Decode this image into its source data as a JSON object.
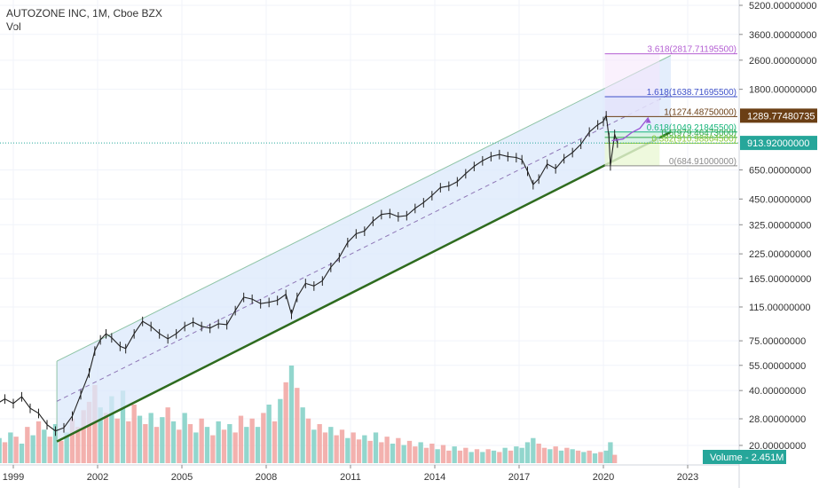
{
  "header": {
    "symbol_title": "AUTOZONE INC, 1M, Cboe BZX",
    "sub_label": "Vol"
  },
  "colors": {
    "channel_fill": "#dbe8fb",
    "channel_edge": "#8fc4a6",
    "lower_trend": "#2e6b1e",
    "median": "#7a5aa6",
    "candle": "#222222",
    "vol_up": "#7fcfc4",
    "vol_down": "#f1a3a0",
    "current_price": "#26a69a",
    "prior_high": "#6b3f15",
    "volume_badge": "#26a69a",
    "forecast_arrow": "#9b57d6"
  },
  "chart_data": {
    "type": "line",
    "y_scale": "log",
    "price_axis_labels": [
      "5200.00000000",
      "3600.00000000",
      "2600.00000000",
      "1800.00000000",
      "1289.77480735",
      "913.92000000",
      "650.00000000",
      "450.00000000",
      "325.00000000",
      "225.00000000",
      "165.00000000",
      "115.00000000",
      "75.00000000",
      "55.00000000",
      "40.00000000",
      "28.00000000",
      "20.00000000"
    ],
    "price_ticks": [
      5200,
      3600,
      2600,
      1800,
      650,
      450,
      325,
      225,
      165,
      115,
      75,
      55,
      40,
      28,
      20
    ],
    "time_axis_labels": [
      "1999",
      "2002",
      "2005",
      "2008",
      "2011",
      "2014",
      "2017",
      "2020",
      "2023"
    ],
    "time_ticks": [
      1999,
      2002,
      2005,
      2008,
      2011,
      2014,
      2017,
      2020,
      2023
    ],
    "price_path": [
      [
        1998.3,
        33
      ],
      [
        1998.7,
        36
      ],
      [
        1999.0,
        34
      ],
      [
        1999.3,
        37
      ],
      [
        1999.6,
        32
      ],
      [
        1999.9,
        30
      ],
      [
        2000.2,
        26
      ],
      [
        2000.5,
        24
      ],
      [
        2000.8,
        25
      ],
      [
        2001.1,
        29
      ],
      [
        2001.4,
        38
      ],
      [
        2001.7,
        50
      ],
      [
        2001.9,
        66
      ],
      [
        2002.1,
        76
      ],
      [
        2002.3,
        82
      ],
      [
        2002.5,
        78
      ],
      [
        2002.8,
        70
      ],
      [
        2003.0,
        68
      ],
      [
        2003.3,
        82
      ],
      [
        2003.6,
        96
      ],
      [
        2003.9,
        90
      ],
      [
        2004.2,
        82
      ],
      [
        2004.5,
        77
      ],
      [
        2004.8,
        82
      ],
      [
        2005.1,
        90
      ],
      [
        2005.4,
        95
      ],
      [
        2005.7,
        90
      ],
      [
        2006.0,
        88
      ],
      [
        2006.3,
        93
      ],
      [
        2006.6,
        92
      ],
      [
        2006.9,
        110
      ],
      [
        2007.2,
        130
      ],
      [
        2007.5,
        127
      ],
      [
        2007.8,
        120
      ],
      [
        2008.1,
        122
      ],
      [
        2008.4,
        125
      ],
      [
        2008.7,
        135
      ],
      [
        2008.9,
        105
      ],
      [
        2009.1,
        130
      ],
      [
        2009.4,
        155
      ],
      [
        2009.7,
        150
      ],
      [
        2010.0,
        160
      ],
      [
        2010.3,
        190
      ],
      [
        2010.6,
        215
      ],
      [
        2010.9,
        260
      ],
      [
        2011.2,
        290
      ],
      [
        2011.5,
        300
      ],
      [
        2011.8,
        340
      ],
      [
        2012.1,
        370
      ],
      [
        2012.4,
        375
      ],
      [
        2012.7,
        360
      ],
      [
        2013.0,
        365
      ],
      [
        2013.3,
        400
      ],
      [
        2013.6,
        430
      ],
      [
        2013.9,
        470
      ],
      [
        2014.2,
        520
      ],
      [
        2014.5,
        530
      ],
      [
        2014.8,
        560
      ],
      [
        2015.1,
        620
      ],
      [
        2015.4,
        680
      ],
      [
        2015.7,
        730
      ],
      [
        2016.0,
        770
      ],
      [
        2016.3,
        790
      ],
      [
        2016.6,
        770
      ],
      [
        2016.9,
        760
      ],
      [
        2017.1,
        740
      ],
      [
        2017.3,
        640
      ],
      [
        2017.5,
        540
      ],
      [
        2017.7,
        580
      ],
      [
        2018.0,
        700
      ],
      [
        2018.3,
        660
      ],
      [
        2018.6,
        750
      ],
      [
        2018.9,
        810
      ],
      [
        2019.2,
        900
      ],
      [
        2019.5,
        1050
      ],
      [
        2019.8,
        1150
      ],
      [
        2020.0,
        1200
      ],
      [
        2020.1,
        1290
      ],
      [
        2020.2,
        980
      ],
      [
        2020.25,
        685
      ],
      [
        2020.4,
        1020
      ],
      [
        2020.5,
        914
      ]
    ],
    "channel": {
      "lower": [
        [
          2000.55,
          21
        ],
        [
          2022.4,
          1050
        ]
      ],
      "upper": [
        [
          2000.55,
          58
        ],
        [
          2022.4,
          2760
        ]
      ]
    },
    "fib_levels": [
      {
        "label": "3.618(2817.71195500)",
        "value": 2817.71,
        "color": "#b45fd3"
      },
      {
        "label": "1.618(1638.71695500)",
        "value": 1638.72,
        "color": "#3e50c9"
      },
      {
        "label": "1(1274.48750000)",
        "value": 1274.49,
        "color": "#6b3f15"
      },
      {
        "label": "0.618(1049.21845500)",
        "value": 1049.22,
        "color": "#19b57b"
      },
      {
        "label": "0.5(979.46473000)",
        "value": 979.46,
        "color": "#2fa84a"
      },
      {
        "label": "0.382(910.98864500)",
        "value": 910.99,
        "color": "#88c936"
      },
      {
        "label": "0(684.91000000)",
        "value": 684.91,
        "color": "#8a8a8a"
      }
    ],
    "current_price": 913.92,
    "prior_high_marker": 1289.7748,
    "volume_label": "Volume",
    "volume_value": "2.451M",
    "volume_max": 7.0,
    "volume_bars": [
      [
        1998.3,
        1.2,
        0
      ],
      [
        1998.5,
        1.8,
        1
      ],
      [
        1998.7,
        1.5,
        0
      ],
      [
        1998.9,
        2.2,
        1
      ],
      [
        1999.1,
        1.9,
        0
      ],
      [
        1999.3,
        1.4,
        1
      ],
      [
        1999.5,
        2.6,
        0
      ],
      [
        1999.7,
        2.0,
        1
      ],
      [
        1999.9,
        3.0,
        0
      ],
      [
        2000.1,
        2.4,
        1
      ],
      [
        2000.3,
        1.9,
        0
      ],
      [
        2000.5,
        2.8,
        1
      ],
      [
        2000.7,
        1.6,
        0
      ],
      [
        2000.9,
        2.2,
        1
      ],
      [
        2001.1,
        3.2,
        0
      ],
      [
        2001.3,
        2.6,
        0
      ],
      [
        2001.5,
        3.8,
        0
      ],
      [
        2001.7,
        4.4,
        0
      ],
      [
        2001.9,
        5.6,
        0
      ],
      [
        2002.1,
        4.0,
        1
      ],
      [
        2002.3,
        3.6,
        0
      ],
      [
        2002.5,
        4.8,
        1
      ],
      [
        2002.7,
        3.2,
        0
      ],
      [
        2002.9,
        5.2,
        1
      ],
      [
        2003.1,
        3.0,
        0
      ],
      [
        2003.3,
        4.2,
        0
      ],
      [
        2003.5,
        3.4,
        1
      ],
      [
        2003.7,
        2.8,
        0
      ],
      [
        2003.9,
        3.6,
        1
      ],
      [
        2004.1,
        2.6,
        0
      ],
      [
        2004.3,
        3.3,
        1
      ],
      [
        2004.5,
        4.0,
        0
      ],
      [
        2004.7,
        3.0,
        1
      ],
      [
        2004.9,
        2.4,
        0
      ],
      [
        2005.1,
        3.6,
        1
      ],
      [
        2005.3,
        2.8,
        0
      ],
      [
        2005.5,
        2.2,
        1
      ],
      [
        2005.7,
        3.2,
        0
      ],
      [
        2005.9,
        2.6,
        1
      ],
      [
        2006.1,
        2.0,
        0
      ],
      [
        2006.3,
        3.0,
        1
      ],
      [
        2006.5,
        2.4,
        0
      ],
      [
        2006.7,
        2.8,
        1
      ],
      [
        2006.9,
        2.2,
        0
      ],
      [
        2007.1,
        3.4,
        0
      ],
      [
        2007.3,
        2.6,
        1
      ],
      [
        2007.5,
        3.2,
        0
      ],
      [
        2007.7,
        2.6,
        1
      ],
      [
        2007.9,
        3.6,
        0
      ],
      [
        2008.1,
        4.2,
        1
      ],
      [
        2008.3,
        3.0,
        0
      ],
      [
        2008.5,
        4.6,
        1
      ],
      [
        2008.7,
        5.8,
        0
      ],
      [
        2008.9,
        7.0,
        1
      ],
      [
        2009.1,
        5.4,
        0
      ],
      [
        2009.3,
        4.0,
        1
      ],
      [
        2009.5,
        3.2,
        0
      ],
      [
        2009.7,
        2.4,
        1
      ],
      [
        2009.9,
        2.8,
        0
      ],
      [
        2010.1,
        2.2,
        0
      ],
      [
        2010.3,
        2.6,
        1
      ],
      [
        2010.5,
        2.0,
        0
      ],
      [
        2010.7,
        2.4,
        0
      ],
      [
        2010.9,
        1.8,
        1
      ],
      [
        2011.1,
        2.2,
        0
      ],
      [
        2011.3,
        1.7,
        0
      ],
      [
        2011.5,
        2.0,
        1
      ],
      [
        2011.7,
        1.6,
        0
      ],
      [
        2011.9,
        2.2,
        1
      ],
      [
        2012.1,
        1.5,
        0
      ],
      [
        2012.3,
        1.9,
        0
      ],
      [
        2012.5,
        1.4,
        1
      ],
      [
        2012.7,
        1.8,
        0
      ],
      [
        2012.9,
        1.3,
        1
      ],
      [
        2013.1,
        1.6,
        0
      ],
      [
        2013.3,
        1.2,
        0
      ],
      [
        2013.5,
        1.5,
        1
      ],
      [
        2013.7,
        1.1,
        0
      ],
      [
        2013.9,
        1.4,
        0
      ],
      [
        2014.1,
        1.0,
        1
      ],
      [
        2014.3,
        1.3,
        0
      ],
      [
        2014.5,
        0.9,
        0
      ],
      [
        2014.7,
        1.2,
        1
      ],
      [
        2014.9,
        0.9,
        0
      ],
      [
        2015.1,
        1.1,
        0
      ],
      [
        2015.3,
        0.8,
        1
      ],
      [
        2015.5,
        1.0,
        0
      ],
      [
        2015.7,
        0.8,
        1
      ],
      [
        2015.9,
        1.0,
        0
      ],
      [
        2016.1,
        0.9,
        1
      ],
      [
        2016.3,
        0.8,
        0
      ],
      [
        2016.5,
        1.1,
        1
      ],
      [
        2016.7,
        0.9,
        0
      ],
      [
        2016.9,
        1.2,
        1
      ],
      [
        2017.1,
        1.1,
        1
      ],
      [
        2017.3,
        1.5,
        1
      ],
      [
        2017.5,
        1.8,
        1
      ],
      [
        2017.7,
        1.4,
        0
      ],
      [
        2017.9,
        1.1,
        0
      ],
      [
        2018.1,
        1.0,
        1
      ],
      [
        2018.3,
        1.2,
        0
      ],
      [
        2018.5,
        0.9,
        1
      ],
      [
        2018.7,
        1.1,
        0
      ],
      [
        2018.9,
        1.0,
        1
      ],
      [
        2019.1,
        0.9,
        0
      ],
      [
        2019.3,
        0.8,
        1
      ],
      [
        2019.5,
        0.9,
        0
      ],
      [
        2019.7,
        0.7,
        1
      ],
      [
        2019.9,
        0.8,
        0
      ],
      [
        2020.1,
        0.9,
        1
      ],
      [
        2020.25,
        1.5,
        1
      ],
      [
        2020.4,
        0.6,
        0
      ]
    ]
  }
}
